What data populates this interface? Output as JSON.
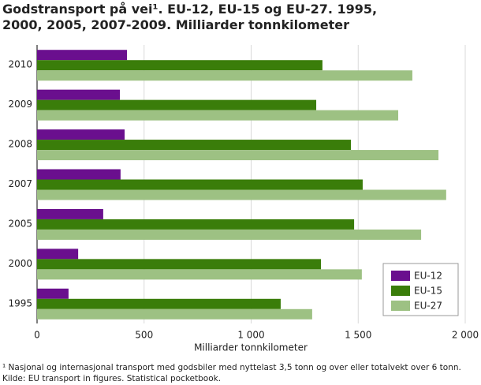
{
  "chart_data": {
    "type": "hbar",
    "title": "Godstransport på vei¹. EU-12, EU-15 og EU-27. 1995, 2000, 2005, 2007-2009. Milliarder tonnkilometer",
    "x_label": "Milliarder tonnkilometer",
    "categories": [
      "2010",
      "2009",
      "2008",
      "2007",
      "2005",
      "2000",
      "1995"
    ],
    "series": [
      {
        "name": "EU-12",
        "color": "#6a0f8e",
        "values": [
          420,
          387,
          409,
          390,
          309,
          192,
          147
        ]
      },
      {
        "name": "EU-15",
        "color": "#3a7d0a",
        "values": [
          1333,
          1304,
          1466,
          1521,
          1481,
          1326,
          1138
        ]
      },
      {
        "name": "EU-27",
        "color": "#9dc183",
        "values": [
          1753,
          1687,
          1875,
          1911,
          1794,
          1517,
          1285
        ]
      }
    ],
    "xlim": [
      0,
      2000
    ],
    "xticks": [
      0,
      500,
      {
        "value": 1000,
        "label": "1 000"
      },
      {
        "value": 1500,
        "label": "1 500"
      },
      {
        "value": 2000,
        "label": "2 000"
      }
    ],
    "grid": true,
    "legend": "bottom-right",
    "footnotes": [
      "¹ Nasjonal og internasjonal transport med godsbiler med nyttelast 3,5 tonn og over eller totalvekt over 6 tonn.",
      "Kilde: EU transport in figures. Statistical pocketbook."
    ]
  }
}
